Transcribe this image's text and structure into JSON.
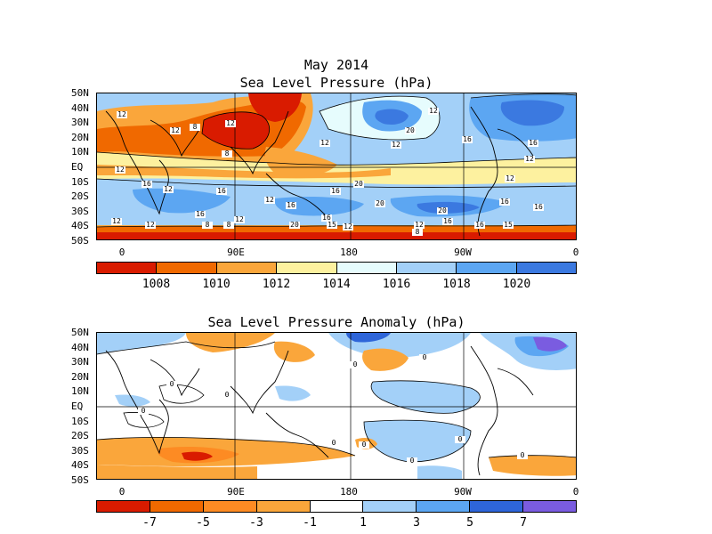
{
  "header": {
    "title": "May 2014"
  },
  "panel1": {
    "title": "Sea Level Pressure (hPa)",
    "lat_labels": [
      "50N",
      "40N",
      "30N",
      "20N",
      "10N",
      "EQ",
      "10S",
      "20S",
      "30S",
      "40S",
      "50S"
    ],
    "lon_labels": [
      "0",
      "90E",
      "180",
      "90W",
      "0"
    ],
    "colorbar": {
      "colors": [
        "#d91b00",
        "#f06900",
        "#faa63b",
        "#fdf19f",
        "#e6fcfd",
        "#a3d0f8",
        "#5ca6f2",
        "#3b79e0"
      ],
      "labels": [
        "1008",
        "1010",
        "1012",
        "1014",
        "1016",
        "1018",
        "1020"
      ]
    },
    "contour_labels": [
      "12",
      "8",
      "12",
      "12",
      "12",
      "12",
      "8",
      "12",
      "16",
      "20",
      "16",
      "12",
      "16",
      "12",
      "12",
      "16",
      "12",
      "12",
      "16",
      "16",
      "20",
      "15",
      "20",
      "16",
      "16",
      "15",
      "12",
      "12",
      "8",
      "16",
      "16",
      "12",
      "16",
      "20",
      "20",
      "12",
      "12",
      "8",
      "8",
      "16"
    ]
  },
  "panel2": {
    "title": "Sea Level Pressure Anomaly (hPa)",
    "lat_labels": [
      "50N",
      "40N",
      "30N",
      "20N",
      "10N",
      "EQ",
      "10S",
      "20S",
      "30S",
      "40S",
      "50S"
    ],
    "lon_labels": [
      "0",
      "90E",
      "180",
      "90W",
      "0"
    ],
    "colorbar": {
      "colors": [
        "#d91b00",
        "#f06900",
        "#fd8b23",
        "#faa63b",
        "#ffffff",
        "#a3d0f8",
        "#5ca6f2",
        "#2e65d9",
        "#7a5ce0"
      ],
      "labels": [
        "-7",
        "-5",
        "-3",
        "-1",
        "1",
        "3",
        "5",
        "7"
      ]
    },
    "contour_labels": [
      "0",
      "0",
      "0",
      "0",
      "0",
      "0",
      "0",
      "0",
      "0",
      "0"
    ]
  }
}
